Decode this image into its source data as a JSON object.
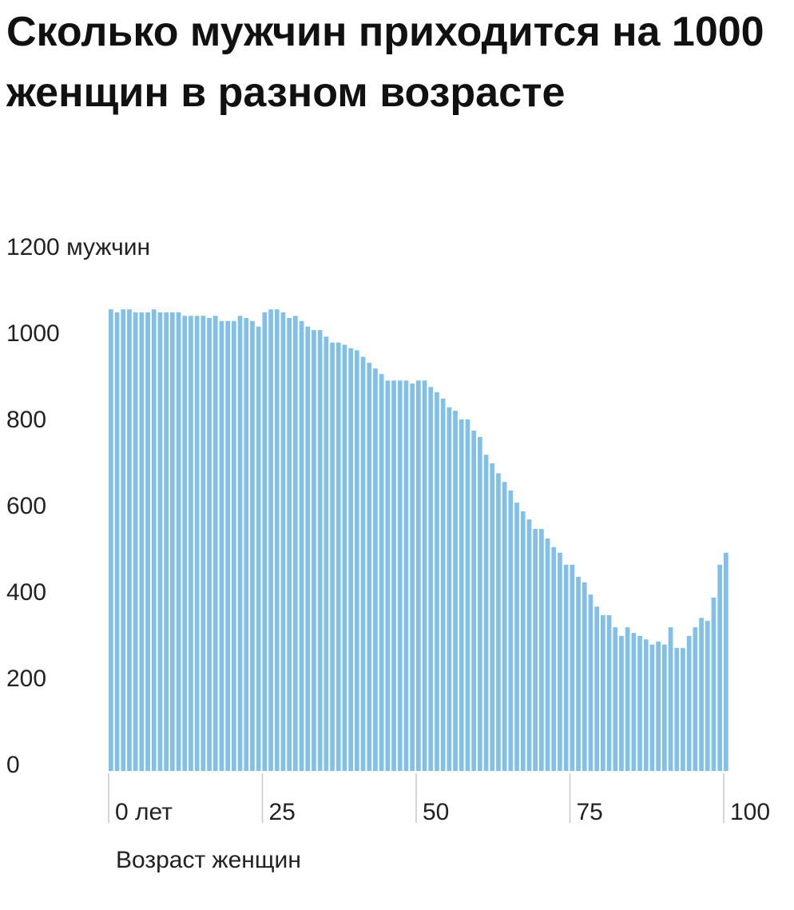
{
  "chart_data": {
    "type": "bar",
    "title": "Сколько мужчин приходится на 1000 женщин в разном возрасте",
    "xlabel": "Возраст женщин",
    "x": [
      0,
      1,
      2,
      3,
      4,
      5,
      6,
      7,
      8,
      9,
      10,
      11,
      12,
      13,
      14,
      15,
      16,
      17,
      18,
      19,
      20,
      21,
      22,
      23,
      24,
      25,
      26,
      27,
      28,
      29,
      30,
      31,
      32,
      33,
      34,
      35,
      36,
      37,
      38,
      39,
      40,
      41,
      42,
      43,
      44,
      45,
      46,
      47,
      48,
      49,
      50,
      51,
      52,
      53,
      54,
      55,
      56,
      57,
      58,
      59,
      60,
      61,
      62,
      63,
      64,
      65,
      66,
      67,
      68,
      69,
      70,
      71,
      72,
      73,
      74,
      75,
      76,
      77,
      78,
      79,
      80,
      81,
      82,
      83,
      84,
      85,
      86,
      87,
      88,
      89,
      90,
      91,
      92,
      93,
      94,
      95,
      96,
      97,
      98,
      99,
      100
    ],
    "values": [
      1070,
      1063,
      1070,
      1070,
      1063,
      1063,
      1063,
      1070,
      1063,
      1063,
      1063,
      1063,
      1055,
      1055,
      1055,
      1055,
      1050,
      1055,
      1043,
      1043,
      1043,
      1055,
      1050,
      1043,
      1030,
      1063,
      1070,
      1070,
      1063,
      1050,
      1055,
      1043,
      1030,
      1022,
      1022,
      1007,
      993,
      993,
      988,
      980,
      975,
      960,
      946,
      933,
      920,
      905,
      905,
      905,
      905,
      898,
      905,
      905,
      890,
      878,
      863,
      843,
      835,
      815,
      815,
      789,
      774,
      733,
      713,
      690,
      670,
      650,
      622,
      602,
      583,
      561,
      561,
      539,
      519,
      506,
      478,
      478,
      450,
      437,
      409,
      381,
      361,
      361,
      333,
      313,
      333,
      320,
      313,
      305,
      293,
      300,
      293,
      333,
      285,
      285,
      313,
      333,
      355,
      348,
      402,
      478,
      506
    ],
    "color": "#82c0e8",
    "xlim": [
      0,
      101
    ],
    "xticks": [
      {
        "value": 0,
        "label": "0 лет"
      },
      25,
      50,
      75,
      100
    ],
    "ylim": [
      0,
      1200
    ],
    "yticks": [
      0,
      200,
      400,
      600,
      800,
      1000,
      {
        "value": 1200,
        "label": "1200 мужчин"
      }
    ],
    "grid": false
  }
}
